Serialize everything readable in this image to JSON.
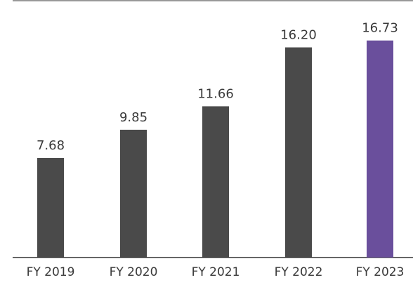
{
  "chart_data": {
    "type": "bar",
    "categories": [
      "FY 2019",
      "FY 2020",
      "FY 2021",
      "FY 2022",
      "FY 2023"
    ],
    "values": [
      7.68,
      9.85,
      11.66,
      16.2,
      16.73
    ],
    "value_labels": [
      "7.68",
      "9.85",
      "11.66",
      "16.20",
      "16.73"
    ],
    "ylim": [
      0,
      18.5
    ],
    "grid": false,
    "colors": {
      "default_bar": "#4a4a4a",
      "highlight_bar": "#6a4f9c",
      "text": "#3a3a3a",
      "axis_line": "#333333"
    },
    "highlight_index": 4
  }
}
